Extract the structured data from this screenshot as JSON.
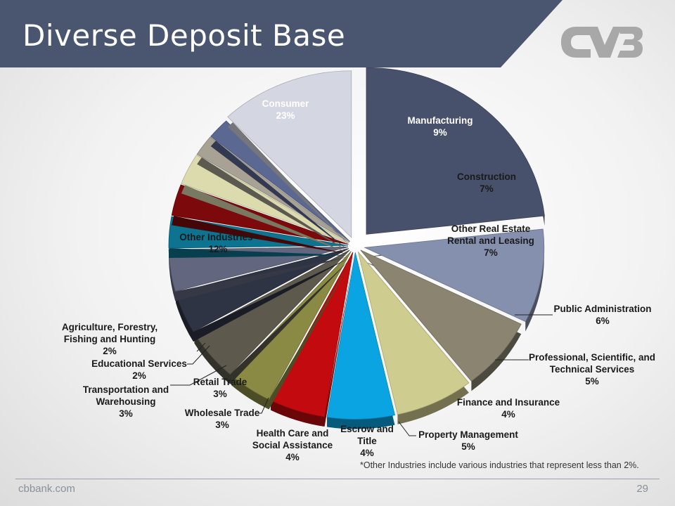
{
  "slide": {
    "title": "Diverse Deposit Base",
    "footnote": "*Other Industries include various industries that represent less than 2%.",
    "footer_site": "cbbank.com",
    "page_number": "29",
    "logo_icon": "cvb-logo-icon",
    "colors": {
      "banner": "#4a5570",
      "logo": "#a8a8a8"
    }
  },
  "chart_data": {
    "type": "pie",
    "title": "",
    "slices": [
      {
        "name": "Consumer",
        "value": 23,
        "pct": "23%",
        "color": "#48516b"
      },
      {
        "name": "Manufacturing",
        "value": 9,
        "pct": "9%",
        "color": "#8490ad"
      },
      {
        "name": "Construction",
        "value": 7,
        "pct": "7%",
        "color": "#8b8470"
      },
      {
        "name": "Other Real Estate Rental and Leasing",
        "value": 7,
        "pct": "7%",
        "color": "#cfcc8f"
      },
      {
        "name": "Public Administration",
        "value": 6,
        "pct": "6%",
        "color": "#0aa4e2"
      },
      {
        "name": "Professional, Scientific, and Technical Services",
        "value": 5,
        "pct": "5%",
        "color": "#c20a0f"
      },
      {
        "name": "Finance and Insurance",
        "value": 4,
        "pct": "4%",
        "color": "#8a8a45"
      },
      {
        "name": "Property Management",
        "value": 5,
        "pct": "5%",
        "color": "#5d5a4d"
      },
      {
        "name": "Escrow and Title",
        "value": 4,
        "pct": "4%",
        "color": "#2f3444"
      },
      {
        "name": "Health Care and Social Assistance",
        "value": 4,
        "pct": "4%",
        "color": "#62667e"
      },
      {
        "name": "Wholesale Trade",
        "value": 3,
        "pct": "3%",
        "color": "#0c7390"
      },
      {
        "name": "Retail Trade",
        "value": 3,
        "pct": "3%",
        "color": "#7c0a0c"
      },
      {
        "name": "Transportation and Warehousing",
        "value": 3,
        "pct": "3%",
        "color": "#dcdbae"
      },
      {
        "name": "Educational Services",
        "value": 2,
        "pct": "2%",
        "color": "#a8a294"
      },
      {
        "name": "Agriculture, Forestry, Fishing and Hunting",
        "value": 2,
        "pct": "2%",
        "color": "#5b6891"
      },
      {
        "name": "Other Industries*",
        "value": 12,
        "pct": "12%",
        "color": "#d4d6e2"
      }
    ],
    "labels": [
      {
        "lines": [
          "Consumer",
          "23%"
        ],
        "color": "#ffffff"
      },
      {
        "lines": [
          "Manufacturing",
          "9%"
        ],
        "color": "#ffffff"
      },
      {
        "lines": [
          "Construction",
          "7%"
        ],
        "color": "#1a1a1a"
      },
      {
        "lines": [
          "Other Real Estate",
          "Rental and Leasing",
          "7%"
        ],
        "color": "#1a1a1a"
      },
      {
        "lines": [
          "Public Administration",
          "6%"
        ],
        "color": "#1a1a1a"
      },
      {
        "lines": [
          "Professional, Scientific, and",
          "Technical Services",
          "5%"
        ],
        "color": "#1a1a1a"
      },
      {
        "lines": [
          "Finance and Insurance",
          "4%"
        ],
        "color": "#1a1a1a"
      },
      {
        "lines": [
          "Property Management",
          "5%"
        ],
        "color": "#1a1a1a"
      },
      {
        "lines": [
          "Escrow and",
          "Title",
          "4%"
        ],
        "color": "#1a1a1a"
      },
      {
        "lines": [
          "Health Care and",
          "Social Assistance",
          "4%"
        ],
        "color": "#1a1a1a"
      },
      {
        "lines": [
          "Wholesale Trade",
          "3%"
        ],
        "color": "#1a1a1a"
      },
      {
        "lines": [
          "Retail Trade",
          "3%"
        ],
        "color": "#1a1a1a"
      },
      {
        "lines": [
          "Transportation and",
          "Warehousing",
          "3%"
        ],
        "color": "#1a1a1a"
      },
      {
        "lines": [
          "Educational Services",
          "2%"
        ],
        "color": "#1a1a1a"
      },
      {
        "lines": [
          "Agriculture, Forestry,",
          "Fishing and Hunting",
          "2%"
        ],
        "color": "#1a1a1a"
      },
      {
        "lines": [
          "Other Industries*",
          "12%"
        ],
        "color": "#1a1a1a"
      }
    ]
  }
}
